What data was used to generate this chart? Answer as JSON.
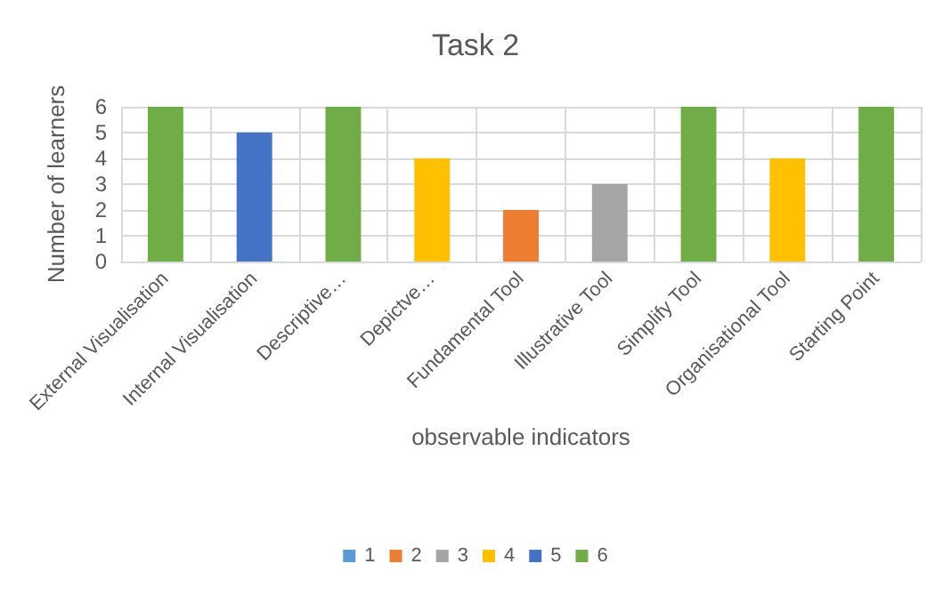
{
  "chart_data": {
    "type": "bar",
    "title": "Task 2",
    "xlabel": "observable indicators",
    "ylabel": "Number of learners",
    "categories": [
      "External Visualisation",
      "Internal Visualisation",
      "Descriptive…",
      "Depictve…",
      "Fundamental Tool",
      "Illustrative Tool",
      "Simplify Tool",
      "Organisational Tool",
      "Starting Point"
    ],
    "series": [
      {
        "name": "1",
        "color": "#5b9bd5",
        "values": [
          null,
          null,
          null,
          null,
          null,
          null,
          null,
          null,
          null
        ]
      },
      {
        "name": "2",
        "color": "#ed7d31",
        "values": [
          null,
          null,
          null,
          null,
          2,
          null,
          null,
          null,
          null
        ]
      },
      {
        "name": "3",
        "color": "#a5a5a5",
        "values": [
          null,
          null,
          null,
          null,
          null,
          3,
          null,
          null,
          null
        ]
      },
      {
        "name": "4",
        "color": "#ffc000",
        "values": [
          null,
          null,
          null,
          4,
          null,
          null,
          null,
          4,
          null
        ]
      },
      {
        "name": "5",
        "color": "#4472c4",
        "values": [
          null,
          5,
          null,
          null,
          null,
          null,
          null,
          null,
          null
        ]
      },
      {
        "name": "6",
        "color": "#70ad47",
        "values": [
          6,
          null,
          6,
          null,
          null,
          null,
          6,
          null,
          6
        ]
      }
    ],
    "stacked": true,
    "ylim": [
      0,
      6
    ],
    "yticks": [
      0,
      1,
      2,
      3,
      4,
      5,
      6
    ],
    "grid": true,
    "legend": "bottom"
  }
}
